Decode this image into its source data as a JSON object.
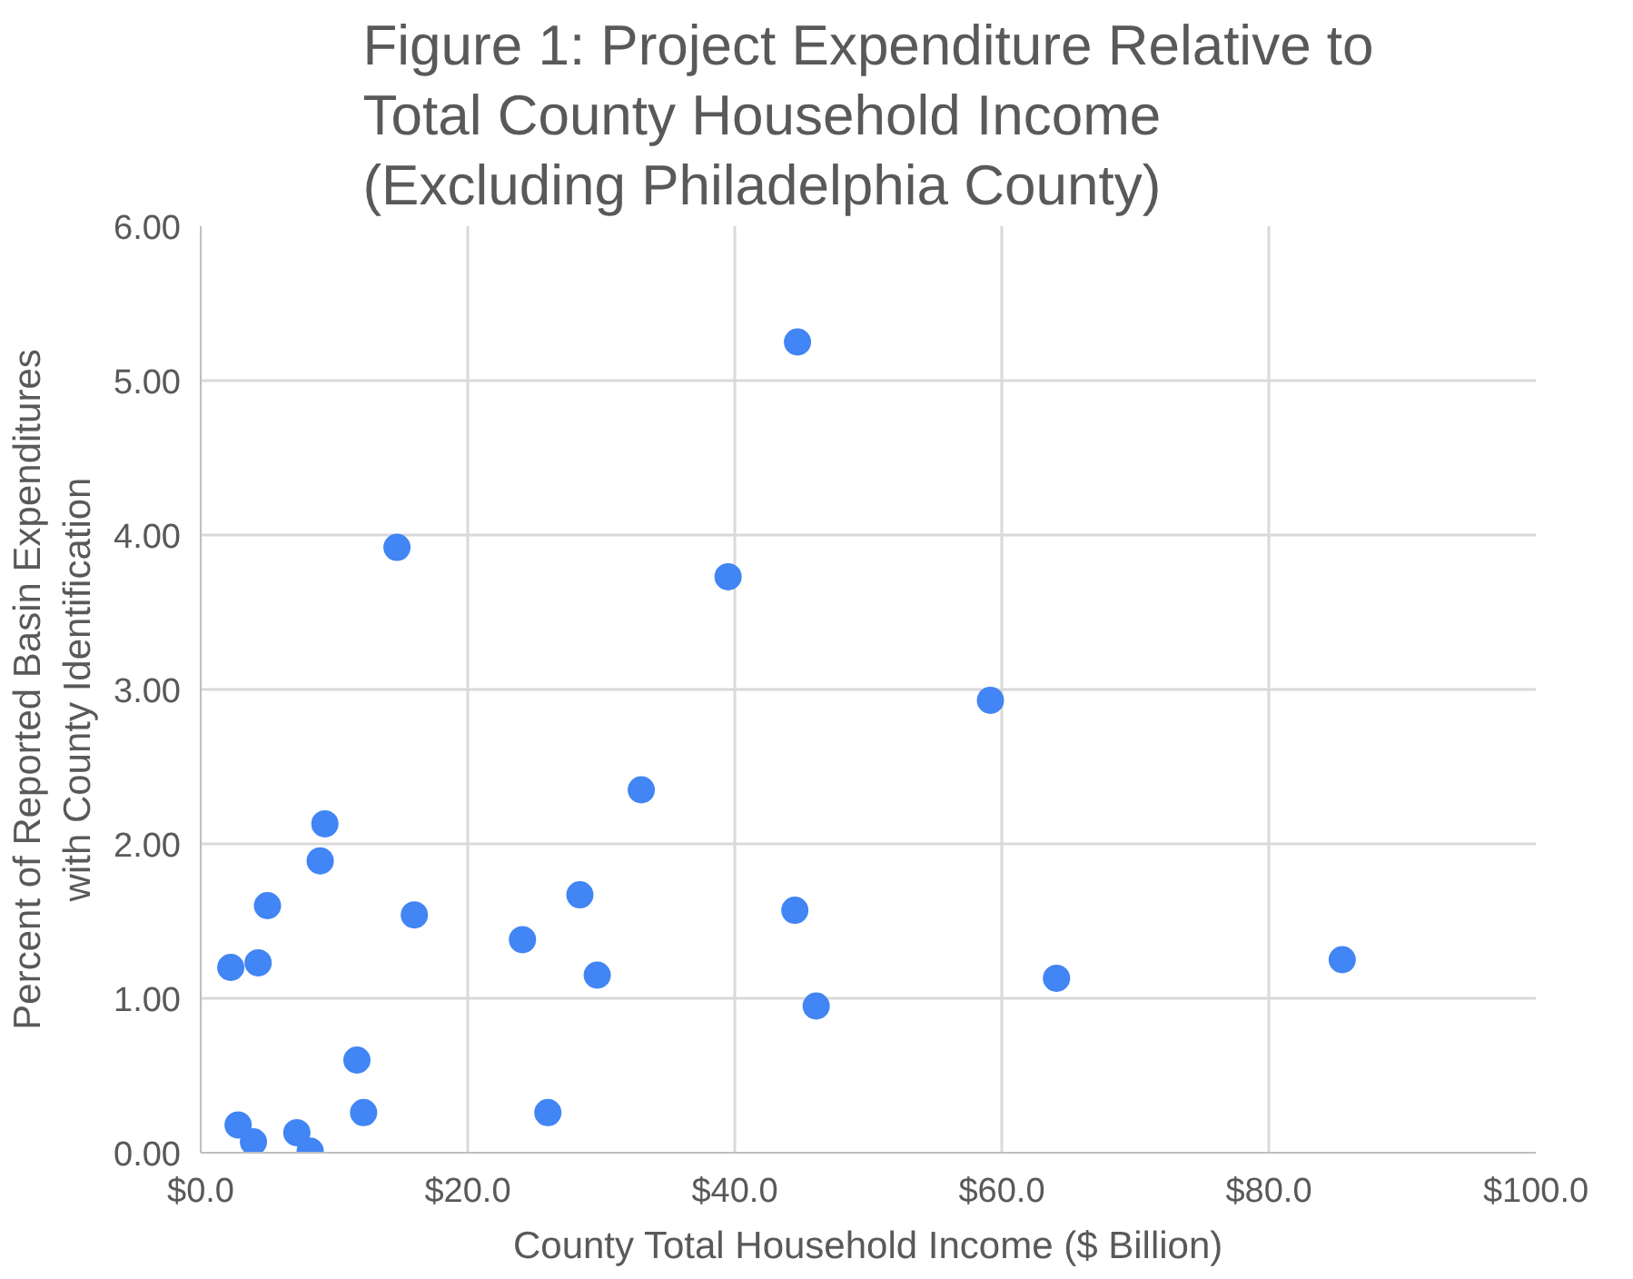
{
  "chart_data": {
    "type": "scatter",
    "title": "Figure 1: Project Expenditure Relative to\nTotal County Household Income\n(Excluding Philadelphia County)",
    "xlabel": "County Total Household Income ($ Billion)",
    "ylabel": "Percent of Reported Basin Expenditures\nwith County Identification",
    "x": [
      44.7,
      14.7,
      39.5,
      33.0,
      9.3,
      8.95,
      5.0,
      16.0,
      28.4,
      24.1,
      29.7,
      44.5,
      46.1,
      2.25,
      4.3,
      11.7,
      12.2,
      26.0,
      2.8,
      3.95,
      7.2,
      8.2,
      59.15,
      85.5,
      64.1
    ],
    "series": [
      {
        "color": "#4285f4",
        "values": [
          5.25,
          3.92,
          3.73,
          2.35,
          2.13,
          1.89,
          1.6,
          1.54,
          1.67,
          1.38,
          1.15,
          1.57,
          0.95,
          1.2,
          1.23,
          0.6,
          0.26,
          0.26,
          0.18,
          0.07,
          0.13,
          0.01,
          2.93,
          1.25,
          1.13
        ]
      }
    ],
    "xlim": [
      0,
      100
    ],
    "xticks": [
      {
        "value": 0,
        "label": "$0.0"
      },
      {
        "value": 20,
        "label": "$20.0"
      },
      {
        "value": 40,
        "label": "$40.0"
      },
      {
        "value": 60,
        "label": "$60.0"
      },
      {
        "value": 80,
        "label": "$80.0"
      },
      {
        "value": 100,
        "label": "$100.0"
      }
    ],
    "ylim": [
      0,
      6
    ],
    "yticks": [
      {
        "value": 0,
        "label": "0.00"
      },
      {
        "value": 1,
        "label": "1.00"
      },
      {
        "value": 2,
        "label": "2.00"
      },
      {
        "value": 3,
        "label": "3.00"
      },
      {
        "value": 4,
        "label": "4.00"
      },
      {
        "value": 5,
        "label": "5.00"
      },
      {
        "value": 6,
        "label": "6.00"
      }
    ],
    "grid": true,
    "marker": "circle"
  }
}
